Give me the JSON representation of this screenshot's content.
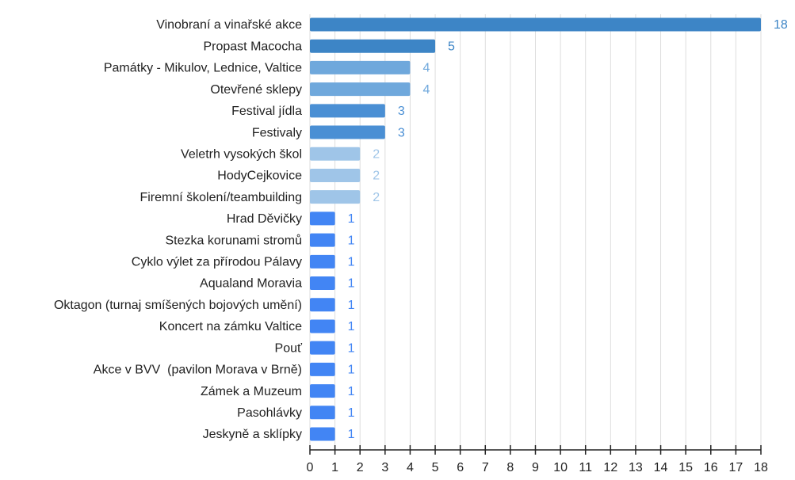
{
  "chart_data": {
    "type": "bar",
    "orientation": "horizontal",
    "categories": [
      "Vinobraní a vinařské akce",
      "Propast Macocha",
      "Památky - Mikulov, Lednice, Valtice",
      "Otevřené sklepy",
      "Festival jídla",
      "Festivaly",
      "Veletrh vysokých škol",
      "HodyCejkovice",
      "Firemní školení/teambuilding",
      "Hrad Děvičky",
      "Stezka korunami stromů",
      "Cyklo výlet za přírodou Pálavy",
      "Aqualand Moravia",
      "Oktagon (turnaj smíšených bojových umění)",
      "Koncert na zámku Valtice",
      "Pouť",
      "Akce v BVV  (pavilon Morava v Brně)",
      "Zámek a Muzeum",
      "Pasohlávky",
      "Jeskyně a sklípky"
    ],
    "values": [
      18,
      5,
      4,
      4,
      3,
      3,
      2,
      2,
      2,
      1,
      1,
      1,
      1,
      1,
      1,
      1,
      1,
      1,
      1,
      1
    ],
    "colors": [
      "#3d85c6",
      "#3d85c6",
      "#6fa8dc",
      "#6fa8dc",
      "#4a8fd4",
      "#4a8fd4",
      "#9fc5e8",
      "#9fc5e8",
      "#9fc5e8",
      "#4285f4",
      "#4285f4",
      "#4285f4",
      "#4285f4",
      "#4285f4",
      "#4285f4",
      "#4285f4",
      "#4285f4",
      "#4285f4",
      "#4285f4",
      "#4285f4"
    ],
    "xlim": [
      0,
      18
    ],
    "xticks": [
      0,
      1,
      2,
      3,
      4,
      5,
      6,
      7,
      8,
      9,
      10,
      11,
      12,
      13,
      14,
      15,
      16,
      17,
      18
    ],
    "grid": true
  }
}
